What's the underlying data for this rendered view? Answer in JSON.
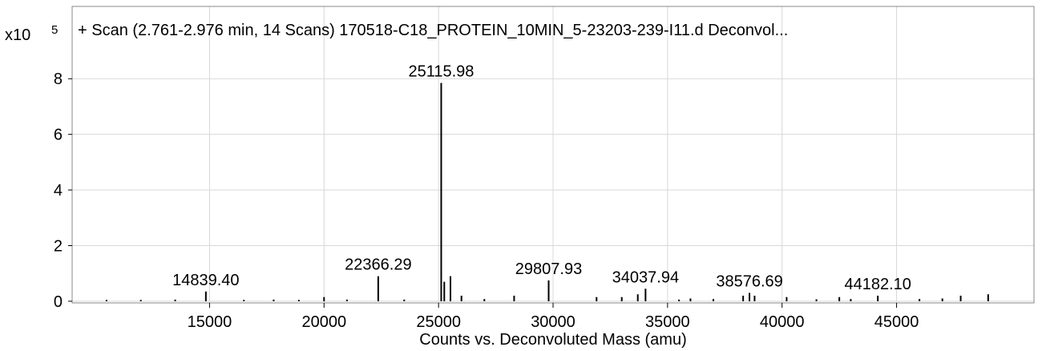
{
  "chart_data": {
    "type": "stick",
    "title": "+ Scan (2.761-2.976 min, 14 Scans) 170518-C18_PROTEIN_10MIN_5-23203-239-I11.d  Deconvol...",
    "x_label": "Counts vs. Deconvoluted Mass (amu)",
    "y_multiplier": "x10",
    "y_exponent": "5",
    "color": "#000000",
    "grid": true,
    "xlim": [
      9000,
      51000
    ],
    "ylim": [
      -0.06,
      10.6
    ],
    "xticks": [
      15000,
      20000,
      25000,
      30000,
      35000,
      40000,
      45000
    ],
    "yticks": [
      0,
      2,
      4,
      6,
      8
    ],
    "x": [
      10500,
      12000,
      13500,
      14839.4,
      16500,
      17800,
      18900,
      20000,
      21000,
      22366.29,
      23500,
      25115.98,
      25250,
      25520,
      26000,
      27000,
      28300,
      29807.93,
      31900,
      33000,
      33700,
      34037.94,
      35500,
      36000,
      37000,
      38300,
      38576.69,
      38800,
      40200,
      41500,
      42500,
      43000,
      44182.1,
      46000,
      47000,
      47800,
      49000
    ],
    "values": [
      0.05,
      0.05,
      0.06,
      0.35,
      0.05,
      0.06,
      0.05,
      0.15,
      0.06,
      0.9,
      0.06,
      7.85,
      0.7,
      0.9,
      0.2,
      0.08,
      0.2,
      0.75,
      0.15,
      0.15,
      0.25,
      0.45,
      0.06,
      0.1,
      0.08,
      0.2,
      0.3,
      0.2,
      0.15,
      0.07,
      0.15,
      0.08,
      0.2,
      0.08,
      0.1,
      0.2,
      0.25
    ],
    "x_labels": [
      null,
      null,
      null,
      "14839.40",
      null,
      null,
      null,
      null,
      null,
      "22366.29",
      null,
      "25115.98",
      null,
      null,
      null,
      null,
      null,
      "29807.93",
      null,
      null,
      null,
      "34037.94",
      null,
      null,
      null,
      null,
      "38576.69",
      null,
      null,
      null,
      null,
      null,
      "44182.10",
      null,
      null,
      null,
      null
    ]
  }
}
